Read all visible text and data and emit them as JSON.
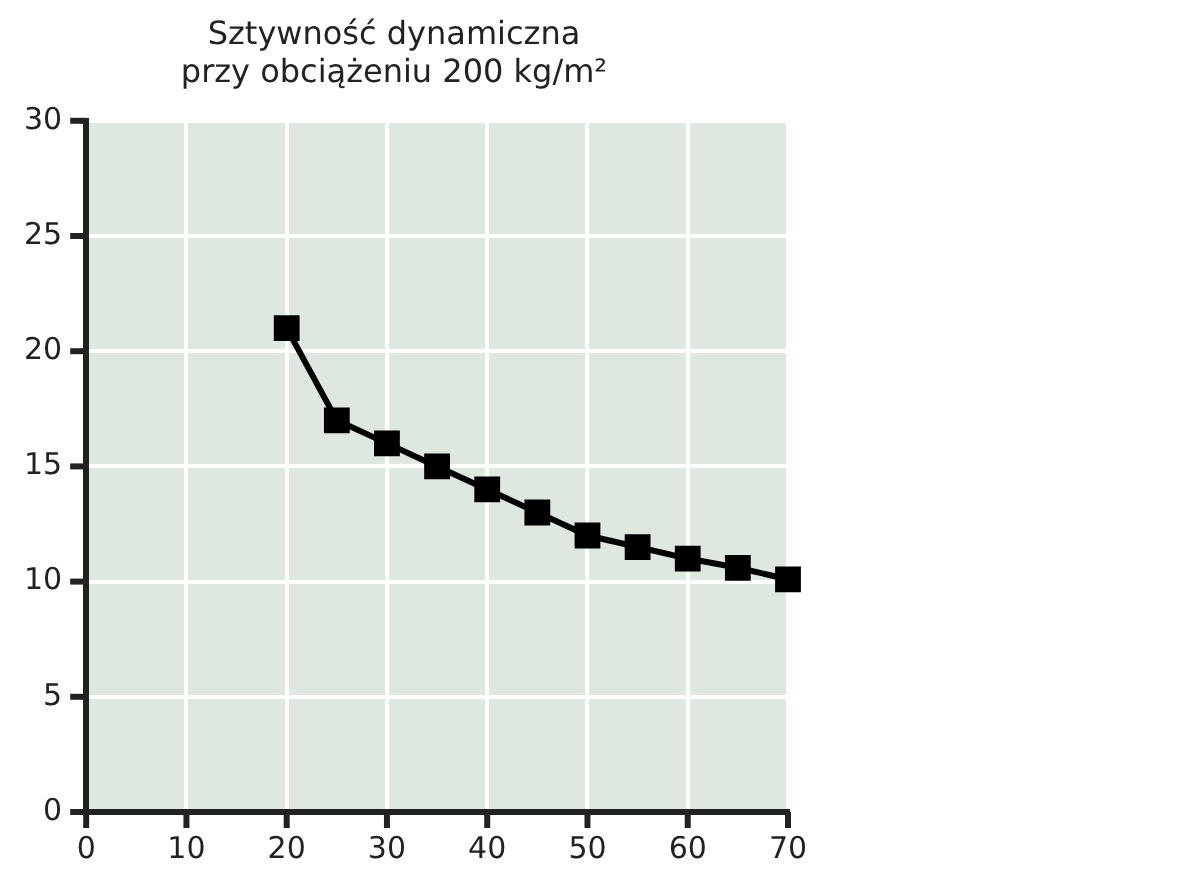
{
  "chart_data": {
    "type": "line",
    "title": "Sztywność dynamiczna\nprzy obciążeniu 200 kg/m²",
    "x": [
      20,
      25,
      30,
      35,
      40,
      45,
      50,
      55,
      60,
      65,
      70
    ],
    "series": [
      {
        "color": "#000000",
        "values": [
          21,
          17,
          16,
          15,
          14,
          13,
          12,
          11.5,
          11,
          10.6,
          10.1
        ]
      }
    ],
    "xlim": [
      0,
      70
    ],
    "xticks": [
      0,
      10,
      20,
      30,
      40,
      50,
      60,
      70
    ],
    "ylim": [
      0,
      30
    ],
    "yticks": [
      0,
      5,
      10,
      15,
      20,
      25,
      30
    ],
    "grid": true,
    "legend": false,
    "marker": "square",
    "line_style": "solid"
  }
}
